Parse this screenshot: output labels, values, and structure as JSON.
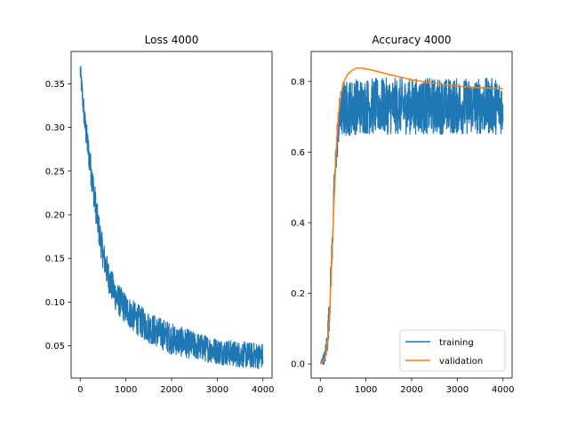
{
  "chart_data": [
    {
      "type": "line",
      "title": "Loss 4000",
      "xlabel": "",
      "ylabel": "",
      "xlim": [
        -200,
        4200
      ],
      "ylim": [
        0.013,
        0.387
      ],
      "x_ticks": [
        0,
        1000,
        2000,
        3000,
        4000
      ],
      "x_tick_labels": [
        "0",
        "1000",
        "2000",
        "3000",
        "4000"
      ],
      "y_ticks": [
        0.05,
        0.1,
        0.15,
        0.2,
        0.25,
        0.3,
        0.35
      ],
      "y_tick_labels": [
        "0.05",
        "0.10",
        "0.15",
        "0.20",
        "0.25",
        "0.30",
        "0.35"
      ],
      "grid": false,
      "series": [
        {
          "color": "#1f77b4",
          "x": [
            0,
            100,
            200,
            300,
            400,
            500,
            600,
            700,
            800,
            1000,
            1200,
            1500,
            2000,
            2500,
            3000,
            3500,
            4000
          ],
          "y": [
            0.365,
            0.305,
            0.265,
            0.225,
            0.185,
            0.155,
            0.132,
            0.117,
            0.105,
            0.092,
            0.082,
            0.071,
            0.058,
            0.05,
            0.044,
            0.04,
            0.038
          ],
          "noise_band": [
            0.012,
            0.016,
            0.018,
            0.018,
            0.018,
            0.018,
            0.018,
            0.018,
            0.018,
            0.018,
            0.018,
            0.018,
            0.018,
            0.016,
            0.015,
            0.015,
            0.015
          ]
        }
      ]
    },
    {
      "type": "line",
      "title": "Accuracy 4000",
      "xlabel": "",
      "ylabel": "",
      "xlim": [
        -200,
        4200
      ],
      "ylim": [
        -0.04,
        0.885
      ],
      "x_ticks": [
        0,
        1000,
        2000,
        3000,
        4000
      ],
      "x_tick_labels": [
        "0",
        "1000",
        "2000",
        "3000",
        "4000"
      ],
      "y_ticks": [
        0.0,
        0.2,
        0.4,
        0.6,
        0.8
      ],
      "y_tick_labels": [
        "0.0",
        "0.2",
        "0.4",
        "0.6",
        "0.8"
      ],
      "grid": false,
      "legend": {
        "placement": "lower-right",
        "entries": [
          "training",
          "validation"
        ]
      },
      "series": [
        {
          "name": "training",
          "color": "#1f77b4",
          "x": [
            0,
            100,
            150,
            200,
            250,
            300,
            350,
            400,
            450,
            500,
            600,
            800,
            1000,
            1500,
            2000,
            3000,
            4000
          ],
          "y": [
            0.0,
            0.02,
            0.06,
            0.15,
            0.3,
            0.47,
            0.6,
            0.68,
            0.71,
            0.72,
            0.725,
            0.73,
            0.73,
            0.73,
            0.73,
            0.73,
            0.73
          ],
          "noise_band": [
            0.005,
            0.02,
            0.04,
            0.05,
            0.06,
            0.06,
            0.06,
            0.06,
            0.07,
            0.08,
            0.08,
            0.08,
            0.08,
            0.08,
            0.08,
            0.08,
            0.08
          ]
        },
        {
          "name": "validation",
          "color": "#ff7f0e",
          "x": [
            0,
            100,
            150,
            200,
            250,
            300,
            350,
            400,
            450,
            500,
            600,
            700,
            800,
            900,
            1000,
            1200,
            1500,
            2000,
            2500,
            3000,
            3500,
            4000
          ],
          "y": [
            0.0,
            0.015,
            0.05,
            0.13,
            0.29,
            0.46,
            0.61,
            0.71,
            0.76,
            0.795,
            0.82,
            0.832,
            0.838,
            0.838,
            0.836,
            0.83,
            0.82,
            0.805,
            0.795,
            0.787,
            0.782,
            0.78
          ]
        }
      ]
    }
  ]
}
